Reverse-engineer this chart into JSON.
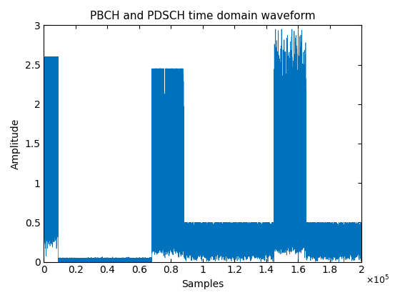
{
  "title": "PBCH and PDSCH time domain waveform",
  "xlabel": "Samples",
  "ylabel": "Amplitude",
  "xlim": [
    0,
    200000
  ],
  "ylim": [
    0,
    3
  ],
  "line_color": "#0072BD",
  "linewidth": 0.5,
  "figsize": [
    5.6,
    4.2
  ],
  "dpi": 100,
  "seed": 42,
  "burst1_start": 0,
  "burst1_end": 9000,
  "burst2_start": 68000,
  "burst2_end": 88000,
  "burst3_start": 145000,
  "burst3_end": 165000,
  "noise_level": 0.28,
  "noise_std": 0.08,
  "burst_peak_max1": 2.6,
  "burst_peak_max2": 2.45,
  "burst_peak_max3": 2.95
}
